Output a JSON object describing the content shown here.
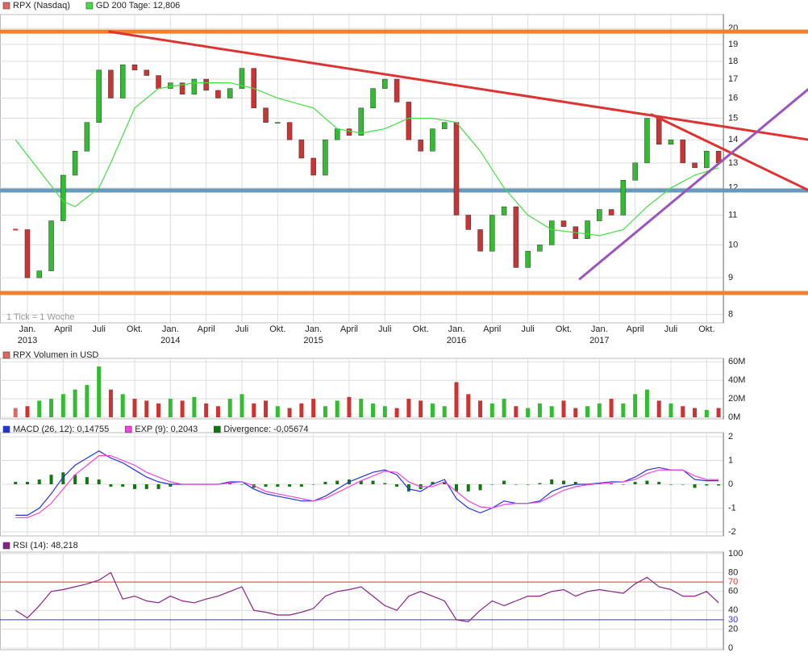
{
  "chart_data": [
    {
      "type": "price",
      "log_scale": true,
      "grid": true,
      "note": "1 Tick = 1 Woche",
      "up_color": "#33bb33",
      "down_color": "#cc3333",
      "x": [
        -1,
        0,
        1,
        2,
        3,
        4,
        5,
        6,
        7,
        8,
        9,
        10,
        11,
        12,
        13,
        14,
        15,
        16,
        17,
        18,
        19,
        20,
        21,
        22,
        23,
        24,
        25,
        26,
        27,
        28,
        29,
        30,
        31,
        32,
        33,
        34,
        35,
        36,
        37,
        38,
        39,
        40,
        41,
        42,
        43,
        44,
        45,
        46,
        47,
        48,
        49,
        50,
        51,
        52,
        53,
        54,
        55,
        56,
        57,
        58
      ],
      "series": [
        {
          "name": "RPX (Nasdaq)",
          "color": "#e06666",
          "values": [
            10.5,
            9.0,
            9.2,
            10.8,
            12.5,
            13.5,
            14.8,
            17.5,
            16.0,
            17.8,
            17.5,
            17.2,
            16.5,
            16.8,
            16.2,
            17.0,
            16.4,
            16.0,
            16.5,
            17.6,
            15.5,
            14.8,
            14.8,
            14.0,
            13.2,
            12.5,
            14.0,
            14.5,
            14.2,
            15.5,
            16.5,
            17.0,
            15.8,
            14.0,
            13.5,
            14.5,
            14.8,
            11.0,
            10.5,
            9.8,
            11.0,
            11.3,
            9.3,
            9.8,
            10.0,
            10.8,
            10.6,
            10.2,
            10.8,
            11.2,
            11.0,
            12.3,
            13.0,
            15.0,
            13.8,
            14.0,
            13.0,
            12.8,
            13.5,
            13.0
          ]
        },
        {
          "name": "GD 200 Tage: 12,806",
          "color": "#44dd44",
          "x": [
            -1,
            3,
            4,
            6,
            7,
            9,
            11,
            14,
            17,
            19,
            21,
            24,
            26,
            28,
            30,
            32,
            34,
            36,
            38,
            40,
            42,
            44,
            46,
            48,
            50,
            52,
            54,
            56,
            58
          ],
          "values": [
            14.0,
            11.5,
            11.3,
            12.0,
            13.0,
            15.5,
            16.5,
            16.8,
            16.8,
            16.5,
            16.0,
            15.5,
            14.5,
            14.3,
            14.5,
            15.0,
            15.0,
            14.8,
            13.5,
            12.0,
            11.0,
            10.5,
            10.4,
            10.3,
            10.5,
            11.3,
            12.0,
            12.5,
            12.8
          ]
        }
      ],
      "hlines": [
        {
          "value": 19.8,
          "color": "#f08030"
        },
        {
          "value": 8.57,
          "color": "#f08030"
        },
        {
          "value": 11.9,
          "color": "#6699bb"
        }
      ],
      "trendlines": [
        {
          "x": [
            6.8,
            65.6
          ],
          "y": [
            19.8,
            14.0
          ],
          "color": "#dd3333"
        },
        {
          "x": [
            52.3,
            65.6
          ],
          "y": [
            15.2,
            11.9
          ],
          "color": "#dd3333"
        },
        {
          "x": [
            46.3,
            65.6
          ],
          "y": [
            8.95,
            16.5
          ],
          "color": "#9955bb"
        }
      ],
      "xlim": [
        -2.3,
        58.4
      ],
      "ylim": [
        7.83,
        20.8
      ],
      "yticks": [
        8,
        9,
        10,
        11,
        12,
        13,
        14,
        15,
        16,
        17,
        18,
        19,
        20
      ],
      "xticks": [
        {
          "value": 0,
          "label": "Jan."
        },
        {
          "value": 3,
          "label": "April"
        },
        {
          "value": 6,
          "label": "Juli"
        },
        {
          "value": 9,
          "label": "Okt."
        },
        {
          "value": 12,
          "label": "Jan."
        },
        {
          "value": 15,
          "label": "April"
        },
        {
          "value": 18,
          "label": "Juli"
        },
        {
          "value": 21,
          "label": "Okt."
        },
        {
          "value": 24,
          "label": "Jan."
        },
        {
          "value": 27,
          "label": "April"
        },
        {
          "value": 30,
          "label": "Juli"
        },
        {
          "value": 33,
          "label": "Okt."
        },
        {
          "value": 36,
          "label": "Jan."
        },
        {
          "value": 39,
          "label": "April"
        },
        {
          "value": 42,
          "label": "Juli"
        },
        {
          "value": 45,
          "label": "Okt."
        },
        {
          "value": 48,
          "label": "Jan."
        },
        {
          "value": 51,
          "label": "April"
        },
        {
          "value": 54,
          "label": "Juli"
        },
        {
          "value": 57,
          "label": "Okt."
        }
      ],
      "xtick_years": [
        {
          "value": 0,
          "label": "2013"
        },
        {
          "value": 12,
          "label": "2014"
        },
        {
          "value": 24,
          "label": "2015"
        },
        {
          "value": 36,
          "label": "2016"
        },
        {
          "value": 48,
          "label": "2017"
        }
      ]
    },
    {
      "type": "bar",
      "grid": true,
      "x": [
        -1,
        0,
        1,
        2,
        3,
        4,
        5,
        6,
        7,
        8,
        9,
        10,
        11,
        12,
        13,
        14,
        15,
        16,
        17,
        18,
        19,
        20,
        21,
        22,
        23,
        24,
        25,
        26,
        27,
        28,
        29,
        30,
        31,
        32,
        33,
        34,
        35,
        36,
        37,
        38,
        39,
        40,
        41,
        42,
        43,
        44,
        45,
        46,
        47,
        48,
        49,
        50,
        51,
        52,
        53,
        54,
        55,
        56,
        57,
        58
      ],
      "series": [
        {
          "name": "RPX Volumen in USD",
          "color": "#e06666",
          "values": [
            10000000,
            12000000,
            18000000,
            20000000,
            25000000,
            30000000,
            35000000,
            55000000,
            30000000,
            25000000,
            20000000,
            18000000,
            15000000,
            20000000,
            18000000,
            22000000,
            15000000,
            12000000,
            20000000,
            25000000,
            15000000,
            18000000,
            12000000,
            10000000,
            15000000,
            20000000,
            12000000,
            18000000,
            22000000,
            20000000,
            15000000,
            12000000,
            10000000,
            20000000,
            18000000,
            15000000,
            12000000,
            38000000,
            25000000,
            18000000,
            15000000,
            20000000,
            12000000,
            10000000,
            15000000,
            12000000,
            18000000,
            10000000,
            12000000,
            15000000,
            20000000,
            15000000,
            25000000,
            30000000,
            18000000,
            15000000,
            12000000,
            10000000,
            8000000,
            10000000
          ]
        }
      ],
      "xlim": [
        -2.3,
        58.4
      ],
      "ylim": [
        0,
        62000000
      ],
      "yticks": [
        {
          "value": 0,
          "label": "0M"
        },
        {
          "value": 20000000,
          "label": "20M"
        },
        {
          "value": 40000000,
          "label": "40M"
        },
        {
          "value": 60000000,
          "label": "60M"
        }
      ]
    },
    {
      "type": "line",
      "grid": true,
      "x": [
        -1,
        0,
        1,
        2,
        3,
        4,
        5,
        6,
        7,
        8,
        9,
        10,
        11,
        12,
        13,
        14,
        15,
        16,
        17,
        18,
        19,
        20,
        21,
        22,
        23,
        24,
        25,
        26,
        27,
        28,
        29,
        30,
        31,
        32,
        33,
        34,
        35,
        36,
        37,
        38,
        39,
        40,
        41,
        42,
        43,
        44,
        45,
        46,
        47,
        48,
        49,
        50,
        51,
        52,
        53,
        54,
        55,
        56,
        57,
        58
      ],
      "series": [
        {
          "name": "MACD (26, 12): 0,14755",
          "color": "#2233dd",
          "values": [
            -1.3,
            -1.3,
            -1.0,
            -0.4,
            0.3,
            0.8,
            1.1,
            1.4,
            1.1,
            0.9,
            0.6,
            0.3,
            0.1,
            0,
            0,
            0,
            0,
            0,
            0.1,
            0.1,
            -0.2,
            -0.4,
            -0.5,
            -0.6,
            -0.7,
            -0.7,
            -0.5,
            -0.2,
            0.1,
            0.3,
            0.5,
            0.6,
            0.4,
            -0.2,
            -0.3,
            0,
            0.2,
            -0.6,
            -1.0,
            -1.2,
            -1.0,
            -0.7,
            -0.8,
            -0.8,
            -0.7,
            -0.3,
            -0.1,
            0,
            0,
            0.05,
            0.1,
            0.1,
            0.3,
            0.6,
            0.7,
            0.6,
            0.6,
            0.2,
            0.15,
            0.15
          ]
        },
        {
          "name": "EXP (9): 0,2043",
          "color": "#ee44dd",
          "values": [
            -1.4,
            -1.4,
            -1.2,
            -0.8,
            -0.2,
            0.4,
            0.8,
            1.2,
            1.2,
            1.0,
            0.8,
            0.5,
            0.3,
            0.1,
            0,
            0,
            0,
            0,
            0.05,
            0.1,
            -0.05,
            -0.3,
            -0.4,
            -0.5,
            -0.6,
            -0.7,
            -0.6,
            -0.35,
            -0.1,
            0.15,
            0.35,
            0.55,
            0.5,
            0.1,
            -0.1,
            -0.1,
            0.1,
            -0.3,
            -0.7,
            -0.95,
            -1.0,
            -0.85,
            -0.8,
            -0.8,
            -0.75,
            -0.5,
            -0.25,
            -0.1,
            -0.02,
            0.03,
            0.07,
            0.1,
            0.2,
            0.45,
            0.6,
            0.6,
            0.6,
            0.35,
            0.2,
            0.2
          ]
        },
        {
          "name": "Divergence: -0,05674",
          "color": "#117711",
          "kind": "bar",
          "values": [
            0.1,
            0.1,
            0.2,
            0.4,
            0.5,
            0.4,
            0.3,
            0.2,
            -0.1,
            -0.1,
            -0.2,
            -0.2,
            -0.2,
            -0.1,
            0,
            0,
            0,
            0,
            0.05,
            0,
            -0.15,
            -0.1,
            -0.1,
            -0.1,
            -0.1,
            0,
            0.1,
            0.15,
            0.2,
            0.15,
            0.15,
            0.05,
            -0.1,
            -0.3,
            -0.2,
            0.1,
            0.1,
            -0.3,
            -0.3,
            -0.25,
            0,
            0.15,
            0,
            0,
            0.05,
            0.2,
            0.15,
            0.1,
            0.02,
            0.02,
            0.03,
            0,
            0.1,
            0.15,
            0.1,
            0,
            0,
            -0.15,
            -0.05,
            -0.05
          ]
        }
      ],
      "xlim": [
        -2.3,
        58.4
      ],
      "ylim": [
        -2.1,
        2.1
      ],
      "yticks": [
        -2,
        -1,
        0,
        1,
        2
      ]
    },
    {
      "type": "line",
      "grid": true,
      "x": [
        -1,
        0,
        1,
        2,
        3,
        4,
        5,
        6,
        7,
        8,
        9,
        10,
        11,
        12,
        13,
        14,
        15,
        16,
        17,
        18,
        19,
        20,
        21,
        22,
        23,
        24,
        25,
        26,
        27,
        28,
        29,
        30,
        31,
        32,
        33,
        34,
        35,
        36,
        37,
        38,
        39,
        40,
        41,
        42,
        43,
        44,
        45,
        46,
        47,
        48,
        49,
        50,
        51,
        52,
        53,
        54,
        55,
        56,
        57,
        58
      ],
      "series": [
        {
          "name": "RSI (14): 48,218",
          "color": "#882288",
          "values": [
            40,
            32,
            45,
            60,
            62,
            65,
            68,
            72,
            80,
            52,
            55,
            50,
            48,
            55,
            50,
            48,
            52,
            55,
            60,
            65,
            40,
            38,
            35,
            35,
            38,
            42,
            55,
            60,
            62,
            65,
            55,
            45,
            40,
            55,
            60,
            55,
            50,
            30,
            28,
            40,
            50,
            45,
            50,
            55,
            55,
            60,
            62,
            55,
            60,
            62,
            60,
            58,
            68,
            75,
            65,
            62,
            55,
            55,
            60,
            48
          ]
        }
      ],
      "hlines": [
        {
          "value": 70,
          "color": "#dd3333"
        },
        {
          "value": 30,
          "color": "#3333dd"
        }
      ],
      "xlim": [
        -2.3,
        58.4
      ],
      "ylim": [
        0,
        100
      ],
      "yticks": [
        0,
        20,
        40,
        60,
        80,
        100
      ]
    }
  ]
}
